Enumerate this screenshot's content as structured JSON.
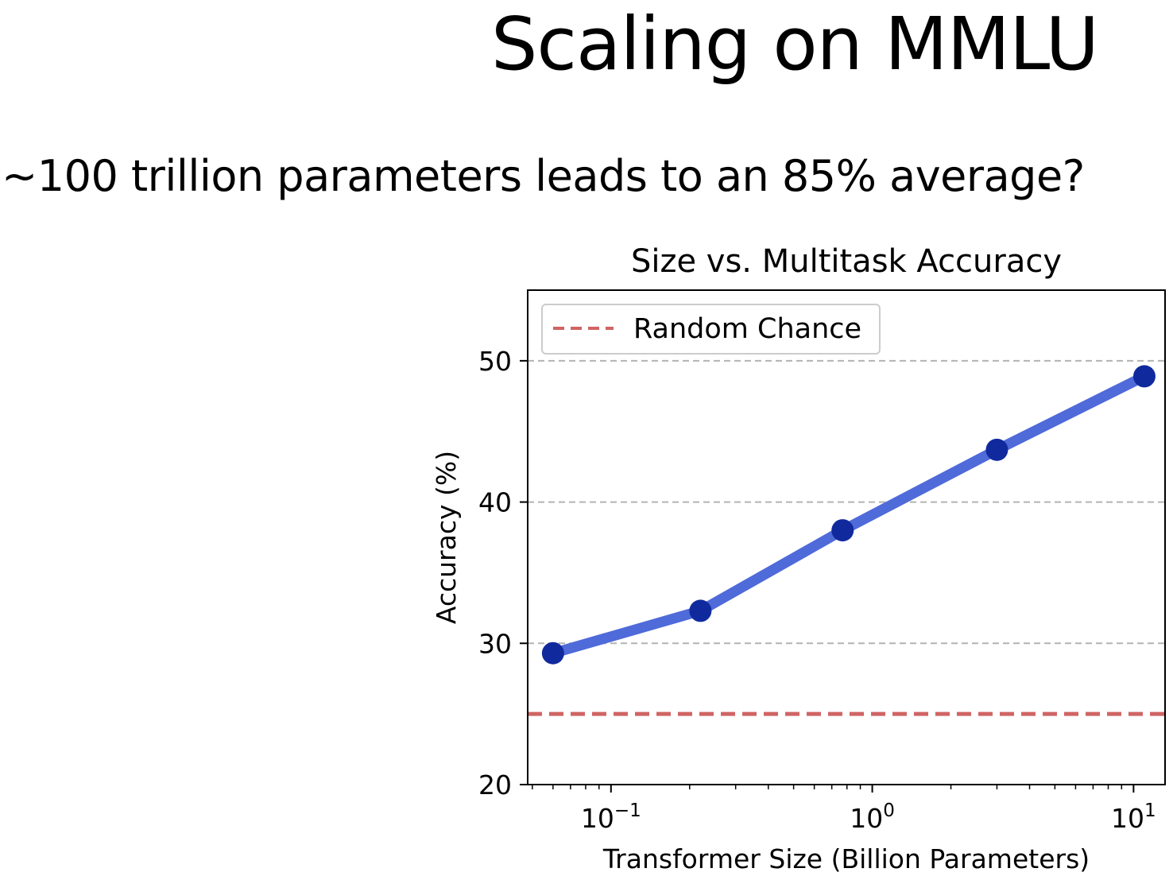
{
  "slide": {
    "title": "Scaling on MMLU",
    "subtitle": "~100 trillion parameters leads to an 85% average?"
  },
  "colors": {
    "line": "#4f6ad9",
    "marker": "#102a9e",
    "random_chance": "#d06464",
    "grid": "#b3b3b3"
  },
  "chart_data": {
    "type": "line",
    "title": "Size vs. Multitask Accuracy",
    "xlabel": "Transformer Size (Billion Parameters)",
    "ylabel": "Accuracy (%)",
    "xscale": "log",
    "xlim": [
      0.048,
      13.2
    ],
    "ylim": [
      20,
      55
    ],
    "yticks": [
      20,
      30,
      40,
      50
    ],
    "ytick_labels": [
      "20",
      "30",
      "40",
      "50"
    ],
    "xticks": [
      0.1,
      1,
      10
    ],
    "xtick_labels": [
      {
        "base": "10",
        "exp": "−1"
      },
      {
        "base": "10",
        "exp": "0"
      },
      {
        "base": "10",
        "exp": "1"
      }
    ],
    "grid": "horizontal dashed",
    "legend_position": "top-left",
    "series": [
      {
        "x": [
          0.06,
          0.22,
          0.77,
          3.0,
          11.0
        ],
        "values": [
          29.3,
          32.3,
          38.0,
          43.7,
          48.9
        ]
      }
    ],
    "reference_lines": [
      {
        "name": "Random Chance",
        "y": 25,
        "style": "dashed"
      }
    ]
  }
}
